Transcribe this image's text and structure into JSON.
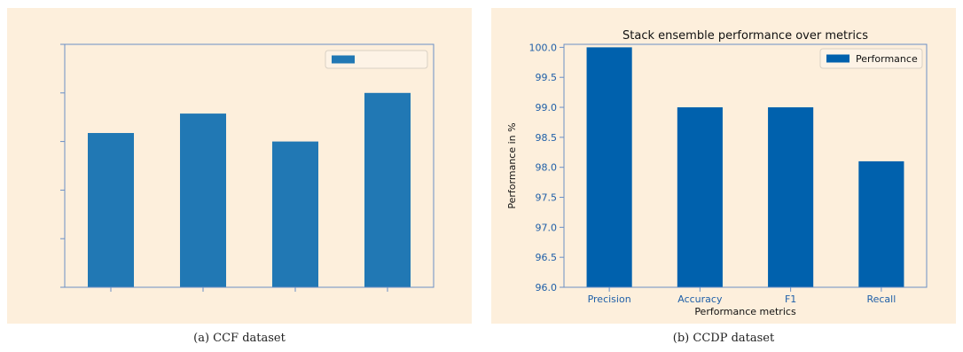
{
  "chart_data": [
    {
      "type": "bar",
      "title": "",
      "xlabel": "",
      "ylabel": "",
      "categories": [
        "",
        "",
        "",
        ""
      ],
      "series": [
        {
          "name": "",
          "values": [
            63.5,
            71.5,
            60,
            80
          ]
        }
      ],
      "ylim": [
        0,
        100
      ],
      "legend": "top-right",
      "bar_color": "#2178b4",
      "show_tick_labels": false
    },
    {
      "type": "bar",
      "title": "Stack ensemble performance over metrics",
      "xlabel": "Performance metrics",
      "ylabel": "Performance in %",
      "categories": [
        "Precision",
        "Accuracy",
        "F1",
        "Recall"
      ],
      "series": [
        {
          "name": "Performance",
          "values": [
            100.0,
            99.0,
            99.0,
            98.1
          ]
        }
      ],
      "ylim": [
        96.0,
        100.05
      ],
      "yticks": [
        "96.0",
        "96.5",
        "97.0",
        "97.5",
        "98.0",
        "98.5",
        "99.0",
        "99.5",
        "100.0"
      ],
      "legend": "top-right",
      "bar_color": "#0061ad",
      "show_tick_labels": true
    }
  ],
  "captions": {
    "a": "(a) CCF dataset",
    "b": "(b) CCDP dataset"
  },
  "colors": {
    "panel_background": "#fdefdc",
    "axis_color": "#6a8fc5",
    "tick_label_color": "#1f5fa8"
  }
}
